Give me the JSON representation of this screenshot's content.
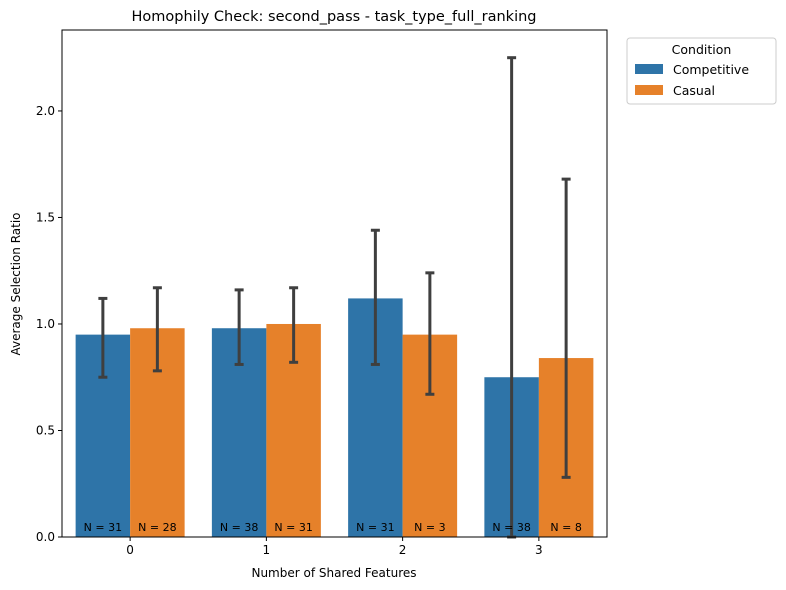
{
  "chart_data": {
    "type": "bar",
    "title": "Homophily Check: second_pass - task_type_full_ranking",
    "xlabel": "Number of Shared Features",
    "ylabel": "Average Selection Ratio",
    "categories": [
      "0",
      "1",
      "2",
      "3"
    ],
    "ylim": [
      0,
      2.38
    ],
    "yticks": [
      0.0,
      0.5,
      1.0,
      1.5,
      2.0
    ],
    "ytick_labels": [
      "0.0",
      "0.5",
      "1.0",
      "1.5",
      "2.0"
    ],
    "grid": false,
    "legend": {
      "title": "Condition",
      "placement": "outside-top-right"
    },
    "series": [
      {
        "name": "Competitive",
        "color": "#2e74a8",
        "values": [
          0.95,
          0.98,
          1.12,
          0.75
        ],
        "ci_low": [
          0.75,
          0.81,
          0.81,
          0.0
        ],
        "ci_high": [
          1.12,
          1.16,
          1.44,
          2.25
        ],
        "n_labels": [
          "N = 31",
          "N = 38",
          "N = 31",
          "N = 38"
        ]
      },
      {
        "name": "Casual",
        "color": "#e6812a",
        "values": [
          0.98,
          1.0,
          0.95,
          0.84
        ],
        "ci_low": [
          0.78,
          0.82,
          0.67,
          0.28
        ],
        "ci_high": [
          1.17,
          1.17,
          1.24,
          1.68
        ],
        "n_labels": [
          "N = 28",
          "N = 31",
          "N = 3",
          "N = 8"
        ]
      }
    ]
  }
}
